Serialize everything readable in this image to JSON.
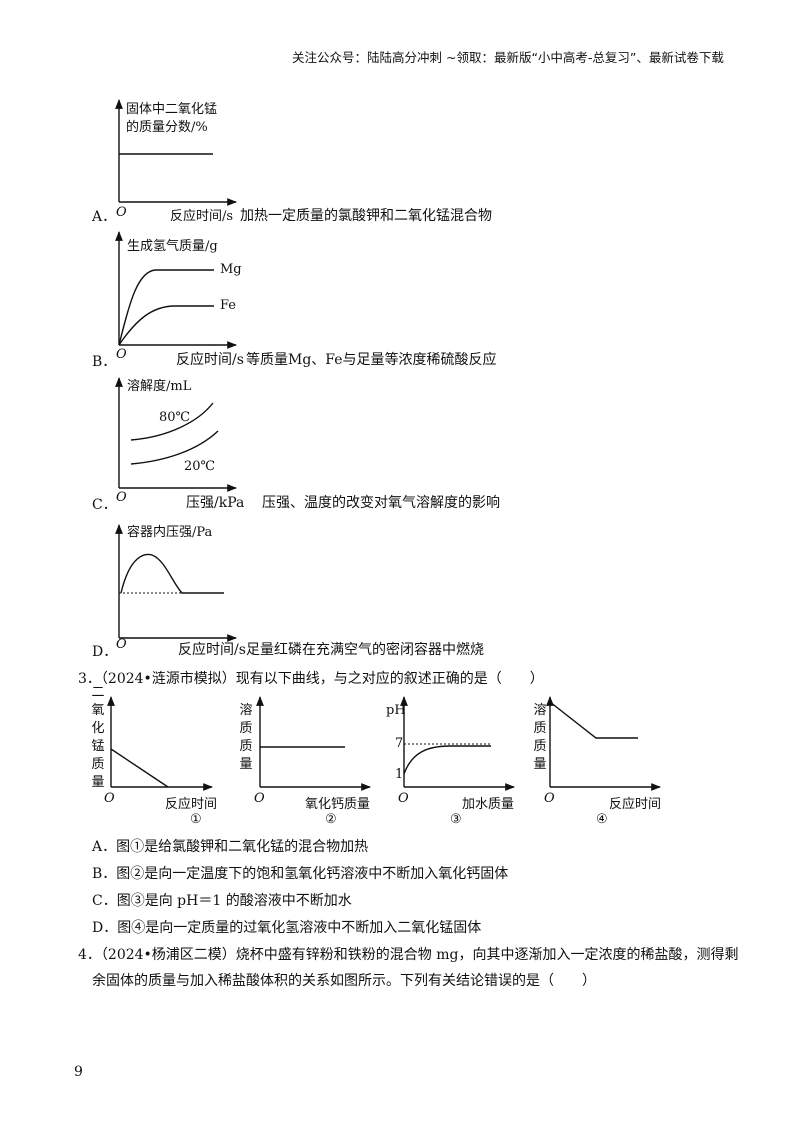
{
  "header": "关注公众号：陆陆高分冲刺 ~领取：最新版“小中高考-总复习”、最新试卷下载",
  "page_number": "9",
  "q2": {
    "A": {
      "letter": "A．",
      "origin": "O",
      "ylabel_line1": "固体中二氧化锰",
      "ylabel_line2": "的质量分数/%",
      "xlabel": "反应时间/s",
      "desc": "加热一定质量的氯酸钾和二氧化锰混合物"
    },
    "B": {
      "letter": "B．",
      "origin": "O",
      "ylabel": "生成氢气质量/g",
      "xlabel": "反应时间/s",
      "desc": "等质量Mg、Fe与足量等浓度稀硫酸反应",
      "curve1": "Mg",
      "curve2": "Fe"
    },
    "C": {
      "letter": "C．",
      "origin": "O",
      "ylabel": "溶解度/mL",
      "xlabel": "压强/kPa",
      "desc": "压强、温度的改变对氧气溶解度的影响",
      "curve1": "80℃",
      "curve2": "20℃"
    },
    "D": {
      "letter": "D．",
      "origin": "O",
      "ylabel": "容器内压强/Pa",
      "xlabel": "反应时间/s",
      "desc": "足量红磷在充满空气的密闭容器中燃烧"
    }
  },
  "q3": {
    "stem": "3．（2024•涟源市模拟）现有以下曲线，与之对应的叙述正确的是（　　）",
    "graphs": [
      {
        "ylabel": "二氧化锰质量",
        "xlabel": "反应时间",
        "origin": "O",
        "num": "①"
      },
      {
        "ylabel": "溶质质量",
        "xlabel": "氧化钙质量",
        "origin": "O",
        "num": "②"
      },
      {
        "ylabel": "pH",
        "xlabel": "加水质量",
        "origin": "O",
        "num": "③",
        "tick7": "7",
        "tick1": "1"
      },
      {
        "ylabel": "溶质质量",
        "xlabel": "反应时间",
        "origin": "O",
        "num": "④"
      }
    ],
    "options": [
      "A．图①是给氯酸钾和二氧化锰的混合物加热",
      "B．图②是向一定温度下的饱和氢氧化钙溶液中不断加入氧化钙固体",
      "C．图③是向 pH＝1 的酸溶液中不断加水",
      "D．图④是向一定质量的过氧化氢溶液中不断加入二氧化锰固体"
    ]
  },
  "q4": {
    "line1": "4．（2024•杨浦区二模）烧杯中盛有锌粉和铁粉的混合物 mg，向其中逐渐加入一定浓度的稀盐酸，测得剩",
    "line2": "余固体的质量与加入稀盐酸体积的关系如图所示。下列有关结论错误的是（　　）"
  }
}
